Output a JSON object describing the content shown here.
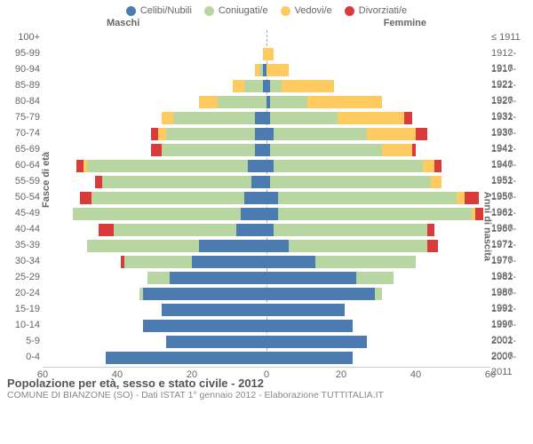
{
  "legend": [
    {
      "label": "Celibi/Nubili",
      "color": "#4b7bb0"
    },
    {
      "label": "Coniugati/e",
      "color": "#b8d6a1"
    },
    {
      "label": "Vedovi/e",
      "color": "#ffca5f"
    },
    {
      "label": "Divorziati/e",
      "color": "#d93b3b"
    }
  ],
  "gender_left": "Maschi",
  "gender_right": "Femmine",
  "y_title_left": "Fasce di età",
  "y_title_right": "Anni di nascita",
  "colors": {
    "celibi": "#4b7bb0",
    "coniugati": "#b8d6a1",
    "vedovi": "#ffca5f",
    "divorziati": "#d93b3b",
    "axis": "#cccccc",
    "text": "#666666"
  },
  "x_max": 60,
  "x_ticks": [
    60,
    40,
    20,
    0,
    20,
    40,
    60
  ],
  "rows": [
    {
      "age": "100+",
      "birth": "≤ 1911",
      "m": {
        "c": 0,
        "co": 0,
        "v": 0,
        "d": 0
      },
      "f": {
        "c": 0,
        "co": 0,
        "v": 0,
        "d": 0
      }
    },
    {
      "age": "95-99",
      "birth": "1912-1916",
      "m": {
        "c": 0,
        "co": 0,
        "v": 1,
        "d": 0
      },
      "f": {
        "c": 0,
        "co": 0,
        "v": 2,
        "d": 0
      }
    },
    {
      "age": "90-94",
      "birth": "1917-1921",
      "m": {
        "c": 1,
        "co": 1,
        "v": 1,
        "d": 0
      },
      "f": {
        "c": 0,
        "co": 0,
        "v": 6,
        "d": 0
      }
    },
    {
      "age": "85-89",
      "birth": "1922-1926",
      "m": {
        "c": 1,
        "co": 5,
        "v": 3,
        "d": 0
      },
      "f": {
        "c": 1,
        "co": 3,
        "v": 14,
        "d": 0
      }
    },
    {
      "age": "80-84",
      "birth": "1927-1931",
      "m": {
        "c": 0,
        "co": 13,
        "v": 5,
        "d": 0
      },
      "f": {
        "c": 1,
        "co": 10,
        "v": 20,
        "d": 0
      }
    },
    {
      "age": "75-79",
      "birth": "1932-1936",
      "m": {
        "c": 3,
        "co": 22,
        "v": 3,
        "d": 0
      },
      "f": {
        "c": 1,
        "co": 18,
        "v": 18,
        "d": 2
      }
    },
    {
      "age": "70-74",
      "birth": "1937-1941",
      "m": {
        "c": 3,
        "co": 24,
        "v": 2,
        "d": 2
      },
      "f": {
        "c": 2,
        "co": 25,
        "v": 13,
        "d": 3
      }
    },
    {
      "age": "65-69",
      "birth": "1942-1946",
      "m": {
        "c": 3,
        "co": 25,
        "v": 0,
        "d": 3
      },
      "f": {
        "c": 1,
        "co": 30,
        "v": 8,
        "d": 1
      }
    },
    {
      "age": "60-64",
      "birth": "1947-1951",
      "m": {
        "c": 5,
        "co": 43,
        "v": 1,
        "d": 2
      },
      "f": {
        "c": 2,
        "co": 40,
        "v": 3,
        "d": 2
      }
    },
    {
      "age": "55-59",
      "birth": "1952-1956",
      "m": {
        "c": 4,
        "co": 40,
        "v": 0,
        "d": 2
      },
      "f": {
        "c": 1,
        "co": 43,
        "v": 3,
        "d": 0
      }
    },
    {
      "age": "50-54",
      "birth": "1957-1961",
      "m": {
        "c": 6,
        "co": 41,
        "v": 0,
        "d": 3
      },
      "f": {
        "c": 3,
        "co": 48,
        "v": 2,
        "d": 4
      }
    },
    {
      "age": "45-49",
      "birth": "1962-1966",
      "m": {
        "c": 7,
        "co": 45,
        "v": 0,
        "d": 0
      },
      "f": {
        "c": 3,
        "co": 52,
        "v": 1,
        "d": 2
      }
    },
    {
      "age": "40-44",
      "birth": "1967-1971",
      "m": {
        "c": 8,
        "co": 33,
        "v": 0,
        "d": 4
      },
      "f": {
        "c": 2,
        "co": 41,
        "v": 0,
        "d": 2
      }
    },
    {
      "age": "35-39",
      "birth": "1972-1976",
      "m": {
        "c": 18,
        "co": 30,
        "v": 0,
        "d": 0
      },
      "f": {
        "c": 6,
        "co": 37,
        "v": 0,
        "d": 3
      }
    },
    {
      "age": "30-34",
      "birth": "1977-1981",
      "m": {
        "c": 20,
        "co": 18,
        "v": 0,
        "d": 1
      },
      "f": {
        "c": 13,
        "co": 27,
        "v": 0,
        "d": 0
      }
    },
    {
      "age": "25-29",
      "birth": "1982-1986",
      "m": {
        "c": 26,
        "co": 6,
        "v": 0,
        "d": 0
      },
      "f": {
        "c": 24,
        "co": 10,
        "v": 0,
        "d": 0
      }
    },
    {
      "age": "20-24",
      "birth": "1987-1991",
      "m": {
        "c": 33,
        "co": 1,
        "v": 0,
        "d": 0
      },
      "f": {
        "c": 29,
        "co": 2,
        "v": 0,
        "d": 0
      }
    },
    {
      "age": "15-19",
      "birth": "1992-1996",
      "m": {
        "c": 28,
        "co": 0,
        "v": 0,
        "d": 0
      },
      "f": {
        "c": 21,
        "co": 0,
        "v": 0,
        "d": 0
      }
    },
    {
      "age": "10-14",
      "birth": "1997-2001",
      "m": {
        "c": 33,
        "co": 0,
        "v": 0,
        "d": 0
      },
      "f": {
        "c": 23,
        "co": 0,
        "v": 0,
        "d": 0
      }
    },
    {
      "age": "5-9",
      "birth": "2002-2006",
      "m": {
        "c": 27,
        "co": 0,
        "v": 0,
        "d": 0
      },
      "f": {
        "c": 27,
        "co": 0,
        "v": 0,
        "d": 0
      }
    },
    {
      "age": "0-4",
      "birth": "2007-2011",
      "m": {
        "c": 43,
        "co": 0,
        "v": 0,
        "d": 0
      },
      "f": {
        "c": 23,
        "co": 0,
        "v": 0,
        "d": 0
      }
    }
  ],
  "footer": {
    "title": "Popolazione per età, sesso e stato civile - 2012",
    "sub": "COMUNE DI BIANZONE (SO) - Dati ISTAT 1° gennaio 2012 - Elaborazione TUTTITALIA.IT"
  }
}
